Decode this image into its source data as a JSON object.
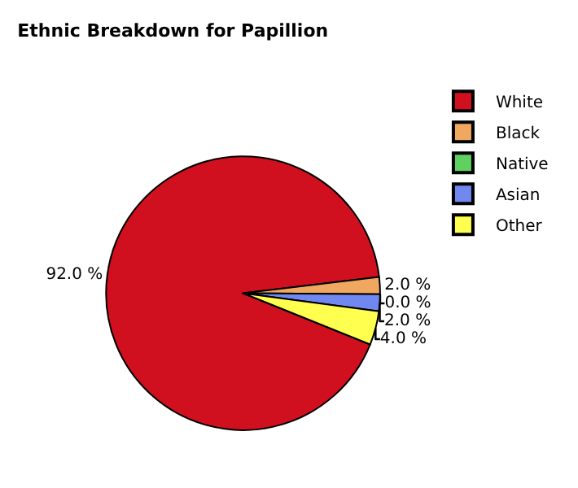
{
  "chart_data": {
    "type": "pie",
    "title": "Ethnic Breakdown for Papillion",
    "categories": [
      "White",
      "Black",
      "Native",
      "Asian",
      "Other"
    ],
    "values": [
      92.0,
      2.0,
      0.0,
      2.0,
      4.0
    ],
    "colors": [
      "#d0101e",
      "#f0a860",
      "#60d060",
      "#7088f0",
      "#ffff50"
    ],
    "value_labels": [
      "92.0 %",
      "2.0 %",
      "0.0 %",
      "2.0 %",
      "4.0 %"
    ],
    "legend": "top right"
  }
}
